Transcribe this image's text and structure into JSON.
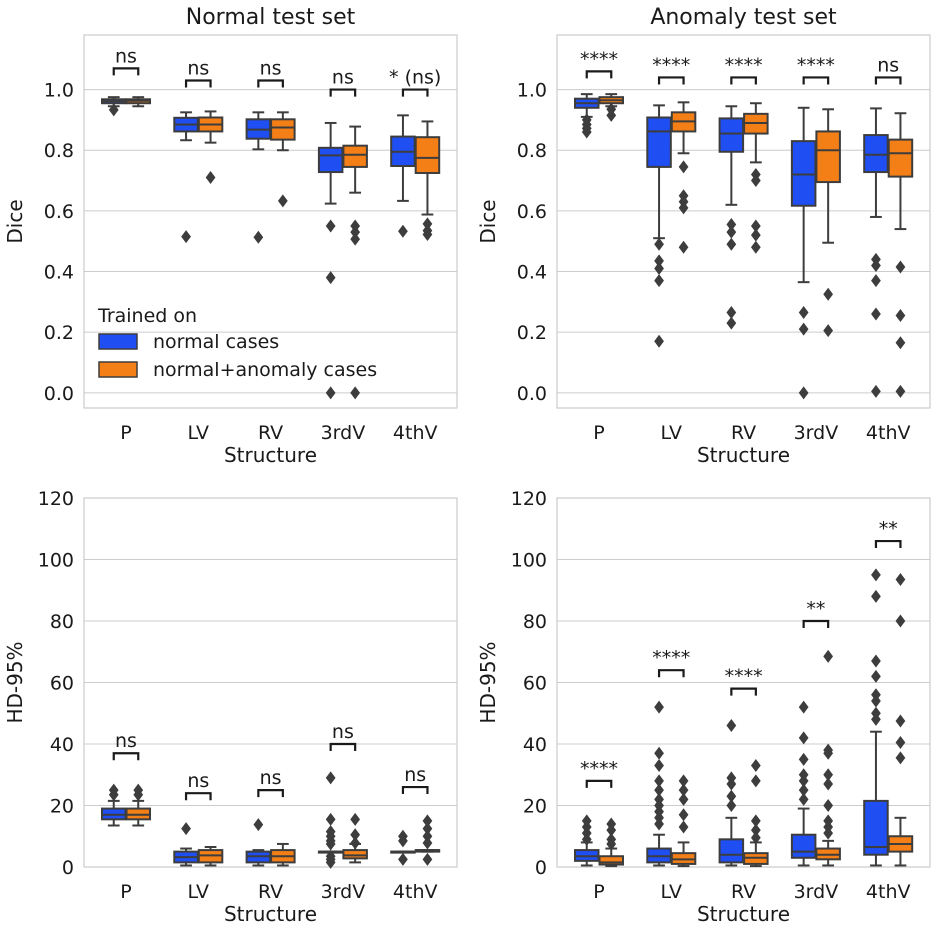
{
  "colors": {
    "normal": "#1f4ef3",
    "normal_anomaly": "#f57f17",
    "edge": "#3d3d3d"
  },
  "chart_data": [
    {
      "type": "box",
      "id": "dice_normal",
      "title": "Normal test set",
      "xlabel": "Structure",
      "ylabel": "Dice",
      "ylim": [
        -0.05,
        1.18
      ],
      "yticks": [
        0.0,
        0.2,
        0.4,
        0.6,
        0.8,
        1.0
      ],
      "ytick_labels": [
        "0.0",
        "0.2",
        "0.4",
        "0.6",
        "0.8",
        "1.0"
      ],
      "categories": [
        "P",
        "LV",
        "RV",
        "3rdV",
        "4thV"
      ],
      "legend": {
        "title": "Trained on",
        "entries": [
          "normal cases",
          "normal+anomaly cases"
        ],
        "placement": "lower-left"
      },
      "series": [
        {
          "name": "normal cases",
          "boxes": [
            {
              "q1": 0.955,
              "median": 0.962,
              "q3": 0.968,
              "lo": 0.945,
              "hi": 0.975,
              "fliers": [
                0.933
              ]
            },
            {
              "q1": 0.862,
              "median": 0.885,
              "q3": 0.907,
              "lo": 0.833,
              "hi": 0.925,
              "fliers": [
                0.515
              ]
            },
            {
              "q1": 0.838,
              "median": 0.868,
              "q3": 0.902,
              "lo": 0.803,
              "hi": 0.925,
              "fliers": [
                0.513
              ]
            },
            {
              "q1": 0.728,
              "median": 0.783,
              "q3": 0.808,
              "lo": 0.624,
              "hi": 0.89,
              "fliers": [
                0.55,
                0.38,
                0.0
              ]
            },
            {
              "q1": 0.748,
              "median": 0.795,
              "q3": 0.845,
              "lo": 0.633,
              "hi": 0.915,
              "fliers": [
                0.533
              ]
            }
          ]
        },
        {
          "name": "normal+anomaly cases",
          "boxes": [
            {
              "q1": 0.955,
              "median": 0.963,
              "q3": 0.968,
              "lo": 0.945,
              "hi": 0.975,
              "fliers": []
            },
            {
              "q1": 0.862,
              "median": 0.885,
              "q3": 0.908,
              "lo": 0.825,
              "hi": 0.928,
              "fliers": [
                0.71
              ]
            },
            {
              "q1": 0.835,
              "median": 0.875,
              "q3": 0.902,
              "lo": 0.8,
              "hi": 0.925,
              "fliers": [
                0.633
              ]
            },
            {
              "q1": 0.745,
              "median": 0.785,
              "q3": 0.815,
              "lo": 0.66,
              "hi": 0.878,
              "fliers": [
                0.55,
                0.53,
                0.507,
                0.0
              ]
            },
            {
              "q1": 0.725,
              "median": 0.775,
              "q3": 0.843,
              "lo": 0.588,
              "hi": 0.895,
              "fliers": [
                0.557,
                0.535,
                0.522
              ]
            }
          ]
        }
      ],
      "annotations": [
        {
          "category": "P",
          "text": "ns",
          "value": 1.07
        },
        {
          "category": "LV",
          "text": "ns",
          "value": 1.03
        },
        {
          "category": "RV",
          "text": "ns",
          "value": 1.03
        },
        {
          "category": "3rdV",
          "text": "ns",
          "value": 1.0
        },
        {
          "category": "4thV",
          "text": "* (ns)",
          "value": 1.0
        }
      ]
    },
    {
      "type": "box",
      "id": "dice_anomaly",
      "title": "Anomaly test set",
      "xlabel": "Structure",
      "ylabel": "Dice",
      "ylim": [
        -0.05,
        1.18
      ],
      "yticks": [
        0.0,
        0.2,
        0.4,
        0.6,
        0.8,
        1.0
      ],
      "ytick_labels": [
        "0.0",
        "0.2",
        "0.4",
        "0.6",
        "0.8",
        "1.0"
      ],
      "categories": [
        "P",
        "LV",
        "RV",
        "3rdV",
        "4thV"
      ],
      "series": [
        {
          "name": "normal cases",
          "boxes": [
            {
              "q1": 0.94,
              "median": 0.955,
              "q3": 0.97,
              "lo": 0.91,
              "hi": 0.985,
              "fliers": [
                0.9,
                0.885,
                0.872,
                0.86
              ]
            },
            {
              "q1": 0.745,
              "median": 0.862,
              "q3": 0.908,
              "lo": 0.51,
              "hi": 0.948,
              "fliers": [
                0.49,
                0.435,
                0.41,
                0.37,
                0.17
              ]
            },
            {
              "q1": 0.795,
              "median": 0.855,
              "q3": 0.905,
              "lo": 0.62,
              "hi": 0.945,
              "fliers": [
                0.555,
                0.53,
                0.49,
                0.265,
                0.23
              ]
            },
            {
              "q1": 0.617,
              "median": 0.72,
              "q3": 0.83,
              "lo": 0.365,
              "hi": 0.94,
              "fliers": [
                0.265,
                0.21,
                0.0
              ]
            },
            {
              "q1": 0.728,
              "median": 0.785,
              "q3": 0.85,
              "lo": 0.58,
              "hi": 0.938,
              "fliers": [
                0.44,
                0.42,
                0.37,
                0.26,
                0.005
              ]
            }
          ]
        },
        {
          "name": "normal+anomaly cases",
          "boxes": [
            {
              "q1": 0.955,
              "median": 0.965,
              "q3": 0.975,
              "lo": 0.945,
              "hi": 0.985,
              "fliers": [
                0.935,
                0.915
              ]
            },
            {
              "q1": 0.862,
              "median": 0.895,
              "q3": 0.925,
              "lo": 0.79,
              "hi": 0.958,
              "fliers": [
                0.745,
                0.65,
                0.63,
                0.61,
                0.48
              ]
            },
            {
              "q1": 0.855,
              "median": 0.89,
              "q3": 0.92,
              "lo": 0.76,
              "hi": 0.955,
              "fliers": [
                0.72,
                0.7,
                0.55,
                0.52,
                0.48
              ]
            },
            {
              "q1": 0.695,
              "median": 0.8,
              "q3": 0.862,
              "lo": 0.495,
              "hi": 0.935,
              "fliers": [
                0.325,
                0.205
              ]
            },
            {
              "q1": 0.713,
              "median": 0.79,
              "q3": 0.835,
              "lo": 0.54,
              "hi": 0.922,
              "fliers": [
                0.415,
                0.255,
                0.165,
                0.005
              ]
            }
          ]
        }
      ],
      "annotations": [
        {
          "category": "P",
          "text": "****",
          "value": 1.06
        },
        {
          "category": "LV",
          "text": "****",
          "value": 1.04
        },
        {
          "category": "RV",
          "text": "****",
          "value": 1.04
        },
        {
          "category": "3rdV",
          "text": "****",
          "value": 1.04
        },
        {
          "category": "4thV",
          "text": "ns",
          "value": 1.04
        }
      ]
    },
    {
      "type": "box",
      "id": "hd_normal",
      "title": "",
      "xlabel": "Structure",
      "ylabel": "HD-95%",
      "ylim": [
        0,
        120
      ],
      "yticks": [
        0,
        20,
        40,
        60,
        80,
        100,
        120
      ],
      "ytick_labels": [
        "0",
        "20",
        "40",
        "60",
        "80",
        "100",
        "120"
      ],
      "categories": [
        "P",
        "LV",
        "RV",
        "3rdV",
        "4thV"
      ],
      "series": [
        {
          "name": "normal cases",
          "boxes": [
            {
              "q1": 15.5,
              "median": 17.0,
              "q3": 19.0,
              "lo": 13.5,
              "hi": 21.5,
              "fliers": [
                25.0,
                23.5
              ]
            },
            {
              "q1": 1.5,
              "median": 3.2,
              "q3": 5.0,
              "lo": 0.5,
              "hi": 6.0,
              "fliers": [
                12.5
              ]
            },
            {
              "q1": 1.5,
              "median": 3.5,
              "q3": 5.0,
              "lo": 0.5,
              "hi": 5.5,
              "fliers": [
                13.8
              ]
            },
            {
              "q1": 5.0,
              "median": 5.0,
              "q3": 5.0,
              "lo": 5.0,
              "hi": 5.0,
              "fliers": [
                29.0,
                15.5,
                11.5,
                10.0,
                8.5,
                7.5,
                3.5,
                2.5,
                1.5
              ]
            },
            {
              "q1": 5.0,
              "median": 5.0,
              "q3": 5.0,
              "lo": 5.0,
              "hi": 5.0,
              "fliers": [
                10.0,
                8.5,
                2.5
              ]
            }
          ]
        },
        {
          "name": "normal+anomaly cases",
          "boxes": [
            {
              "q1": 15.5,
              "median": 17.0,
              "q3": 19.0,
              "lo": 13.5,
              "hi": 21.5,
              "fliers": [
                25.0,
                23.5
              ]
            },
            {
              "q1": 1.5,
              "median": 3.8,
              "q3": 5.5,
              "lo": 0.5,
              "hi": 6.5,
              "fliers": []
            },
            {
              "q1": 1.5,
              "median": 3.5,
              "q3": 5.5,
              "lo": 0.5,
              "hi": 7.5,
              "fliers": []
            },
            {
              "q1": 2.8,
              "median": 3.8,
              "q3": 5.5,
              "lo": 1.5,
              "hi": 7.5,
              "fliers": [
                15.5,
                10.5,
                7.8
              ]
            },
            {
              "q1": 5.0,
              "median": 5.5,
              "q3": 5.5,
              "lo": 5.0,
              "hi": 5.5,
              "fliers": [
                15.0,
                12.5,
                10.0,
                7.8,
                2.5
              ]
            }
          ]
        }
      ],
      "annotations": [
        {
          "category": "P",
          "text": "ns",
          "value": 37
        },
        {
          "category": "LV",
          "text": "ns",
          "value": 24
        },
        {
          "category": "RV",
          "text": "ns",
          "value": 25
        },
        {
          "category": "3rdV",
          "text": "ns",
          "value": 40
        },
        {
          "category": "4thV",
          "text": "ns",
          "value": 26
        }
      ]
    },
    {
      "type": "box",
      "id": "hd_anomaly",
      "title": "",
      "xlabel": "Structure",
      "ylabel": "HD-95%",
      "ylim": [
        0,
        120
      ],
      "yticks": [
        0,
        20,
        40,
        60,
        80,
        100,
        120
      ],
      "ytick_labels": [
        "0",
        "20",
        "40",
        "60",
        "80",
        "100",
        "120"
      ],
      "categories": [
        "P",
        "LV",
        "RV",
        "3rdV",
        "4thV"
      ],
      "series": [
        {
          "name": "normal cases",
          "boxes": [
            {
              "q1": 2.0,
              "median": 3.5,
              "q3": 5.5,
              "lo": 0.5,
              "hi": 8.0,
              "fliers": [
                15.0,
                13.0,
                11.0,
                9.0
              ]
            },
            {
              "q1": 1.5,
              "median": 3.5,
              "q3": 6.0,
              "lo": 0.5,
              "hi": 10.5,
              "fliers": [
                52.0,
                37.0,
                33.0,
                28.0,
                25.0,
                22.0,
                20.0,
                18.0,
                16.0,
                14.0
              ]
            },
            {
              "q1": 1.5,
              "median": 4.0,
              "q3": 9.0,
              "lo": 0.5,
              "hi": 16.0,
              "fliers": [
                46.0,
                29.0,
                27.0,
                23.0,
                20.0
              ]
            },
            {
              "q1": 3.0,
              "median": 5.0,
              "q3": 10.5,
              "lo": 0.5,
              "hi": 19.0,
              "fliers": [
                52.0,
                42.0,
                35.0,
                30.0,
                28.0,
                25.0,
                22.0
              ]
            },
            {
              "q1": 4.0,
              "median": 6.5,
              "q3": 21.5,
              "lo": 0.5,
              "hi": 44.0,
              "fliers": [
                95.0,
                88.0,
                67.0,
                62.0,
                56.0,
                54.0,
                50.0,
                48.0
              ]
            }
          ]
        },
        {
          "name": "normal+anomaly cases",
          "boxes": [
            {
              "q1": 0.8,
              "median": 1.5,
              "q3": 3.5,
              "lo": 0.3,
              "hi": 6.0,
              "fliers": [
                14.0,
                12.0,
                9.0,
                7.5
              ]
            },
            {
              "q1": 1.0,
              "median": 2.5,
              "q3": 4.5,
              "lo": 0.3,
              "hi": 8.0,
              "fliers": [
                28.0,
                25.0,
                22.0,
                17.0,
                13.0
              ]
            },
            {
              "q1": 1.0,
              "median": 3.0,
              "q3": 4.5,
              "lo": 0.3,
              "hi": 8.0,
              "fliers": [
                33.0,
                28.0,
                15.0,
                12.0,
                9.5
              ]
            },
            {
              "q1": 2.5,
              "median": 4.0,
              "q3": 6.0,
              "lo": 0.5,
              "hi": 8.5,
              "fliers": [
                68.5,
                38.0,
                37.0,
                30.0,
                27.0,
                20.0,
                15.0,
                13.0,
                11.0
              ]
            },
            {
              "q1": 5.0,
              "median": 7.5,
              "q3": 10.0,
              "lo": 0.5,
              "hi": 16.0,
              "fliers": [
                93.5,
                80.0,
                47.5,
                40.5,
                35.5
              ]
            }
          ]
        }
      ],
      "annotations": [
        {
          "category": "P",
          "text": "****",
          "value": 28
        },
        {
          "category": "LV",
          "text": "****",
          "value": 64
        },
        {
          "category": "RV",
          "text": "****",
          "value": 58
        },
        {
          "category": "3rdV",
          "text": "**",
          "value": 80
        },
        {
          "category": "4thV",
          "text": "**",
          "value": 106
        }
      ]
    }
  ]
}
